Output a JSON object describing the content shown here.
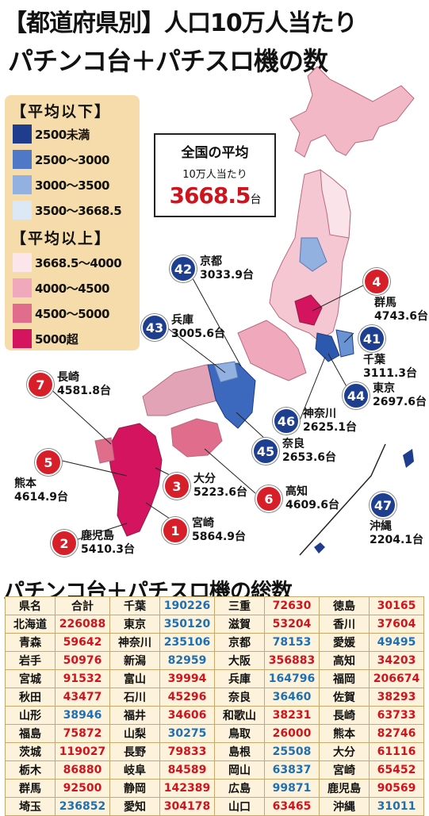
{
  "title": {
    "line1": "【都道府県別】人口10万人当たり",
    "line2": "パチンコ台＋パチスロ機の数"
  },
  "legend": {
    "below_heading": "【平均以下】",
    "below": [
      {
        "label": "2500未満",
        "color": "#1f3d8c"
      },
      {
        "label": "2500〜3000",
        "color": "#4f79c6"
      },
      {
        "label": "3000〜3500",
        "color": "#93b1e0"
      },
      {
        "label": "3500〜3668.5",
        "color": "#dde8f7"
      }
    ],
    "above_heading": "【平均以上】",
    "above": [
      {
        "label": "3668.5〜4000",
        "color": "#fbe6ec"
      },
      {
        "label": "4000〜4500",
        "color": "#f0a9bc"
      },
      {
        "label": "4500〜5000",
        "color": "#e06d8c"
      },
      {
        "label": "5000超",
        "color": "#d4145f"
      }
    ]
  },
  "average": {
    "title": "全国の平均",
    "sub": "10万人当たり",
    "value": "3668.5",
    "unit": "台"
  },
  "callouts": [
    {
      "rank": "4",
      "name": "群馬",
      "value": "4743.6台",
      "tone": "red"
    },
    {
      "rank": "42",
      "name": "京都",
      "value": "3033.9台",
      "tone": "blue"
    },
    {
      "rank": "43",
      "name": "兵庫",
      "value": "3005.6台",
      "tone": "blue"
    },
    {
      "rank": "41",
      "name": "千葉",
      "value": "3111.3台",
      "tone": "blue"
    },
    {
      "rank": "7",
      "name": "長崎",
      "value": "4581.8台",
      "tone": "red"
    },
    {
      "rank": "44",
      "name": "東京",
      "value": "2697.6台",
      "tone": "blue"
    },
    {
      "rank": "46",
      "name": "神奈川",
      "value": "2625.1台",
      "tone": "blue"
    },
    {
      "rank": "45",
      "name": "奈良",
      "value": "2653.6台",
      "tone": "blue"
    },
    {
      "rank": "5",
      "name": "熊本",
      "value": "4614.9台",
      "tone": "red"
    },
    {
      "rank": "3",
      "name": "大分",
      "value": "5223.6台",
      "tone": "red"
    },
    {
      "rank": "6",
      "name": "高知",
      "value": "4609.6台",
      "tone": "red"
    },
    {
      "rank": "47",
      "name": "沖縄",
      "value": "2204.1台",
      "tone": "blue"
    },
    {
      "rank": "1",
      "name": "宮崎",
      "value": "5864.9台",
      "tone": "red"
    },
    {
      "rank": "2",
      "name": "鹿児島",
      "value": "5410.3台",
      "tone": "red"
    }
  ],
  "totals": {
    "heading": "パチンコ台＋パチスロ機の総数",
    "header": {
      "pref": "県名",
      "total": "合計"
    },
    "cols": [
      [
        [
          "北海道",
          "226088",
          "red"
        ],
        [
          "青森",
          "59642",
          "red"
        ],
        [
          "岩手",
          "50976",
          "red"
        ],
        [
          "宮城",
          "91532",
          "red"
        ],
        [
          "秋田",
          "43477",
          "red"
        ],
        [
          "山形",
          "38946",
          "blue"
        ],
        [
          "福島",
          "75872",
          "red"
        ],
        [
          "茨城",
          "119027",
          "red"
        ],
        [
          "栃木",
          "86880",
          "red"
        ],
        [
          "群馬",
          "92500",
          "red"
        ],
        [
          "埼玉",
          "236852",
          "blue"
        ]
      ],
      [
        [
          "千葉",
          "190226",
          "blue"
        ],
        [
          "東京",
          "350120",
          "blue"
        ],
        [
          "神奈川",
          "235106",
          "blue"
        ],
        [
          "新潟",
          "82959",
          "blue"
        ],
        [
          "富山",
          "39994",
          "red"
        ],
        [
          "石川",
          "45296",
          "red"
        ],
        [
          "福井",
          "34606",
          "red"
        ],
        [
          "山梨",
          "30275",
          "blue"
        ],
        [
          "長野",
          "79833",
          "red"
        ],
        [
          "岐阜",
          "84589",
          "red"
        ],
        [
          "静岡",
          "142389",
          "red"
        ],
        [
          "愛知",
          "304178",
          "red"
        ]
      ],
      [
        [
          "三重",
          "72630",
          "red"
        ],
        [
          "滋賀",
          "53204",
          "red"
        ],
        [
          "京都",
          "78153",
          "blue"
        ],
        [
          "大阪",
          "356883",
          "red"
        ],
        [
          "兵庫",
          "164796",
          "blue"
        ],
        [
          "奈良",
          "36460",
          "blue"
        ],
        [
          "和歌山",
          "38231",
          "red"
        ],
        [
          "鳥取",
          "26000",
          "red"
        ],
        [
          "島根",
          "25508",
          "blue"
        ],
        [
          "岡山",
          "63837",
          "blue"
        ],
        [
          "広島",
          "99871",
          "blue"
        ],
        [
          "山口",
          "63465",
          "red"
        ]
      ],
      [
        [
          "徳島",
          "30165",
          "red"
        ],
        [
          "香川",
          "37604",
          "red"
        ],
        [
          "愛媛",
          "49495",
          "blue"
        ],
        [
          "高知",
          "34203",
          "red"
        ],
        [
          "福岡",
          "206674",
          "red"
        ],
        [
          "佐賀",
          "38293",
          "red"
        ],
        [
          "長崎",
          "63733",
          "red"
        ],
        [
          "熊本",
          "82746",
          "red"
        ],
        [
          "大分",
          "61116",
          "red"
        ],
        [
          "宮崎",
          "65452",
          "red"
        ],
        [
          "鹿児島",
          "90569",
          "red"
        ],
        [
          "沖縄",
          "31011",
          "blue"
        ]
      ]
    ]
  }
}
